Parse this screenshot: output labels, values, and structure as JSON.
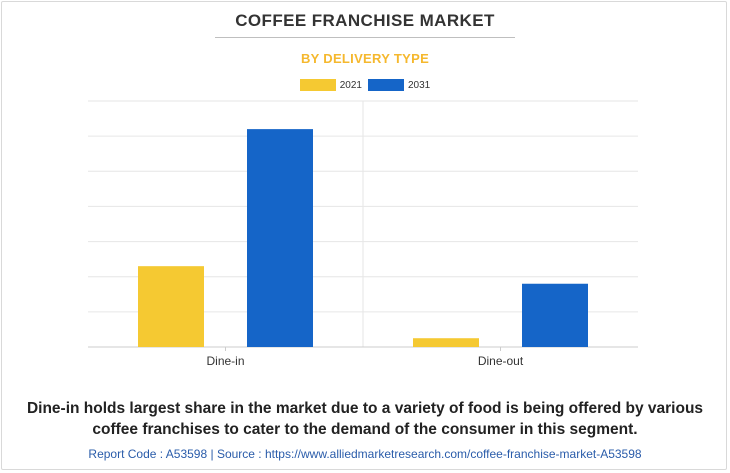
{
  "header": {
    "title": "COFFEE FRANCHISE MARKET",
    "subtitle": "BY DELIVERY TYPE"
  },
  "chart_data": {
    "type": "bar",
    "categories": [
      "Dine-in",
      "Dine-out"
    ],
    "series": [
      {
        "name": "2021",
        "color": "#f5c932",
        "values": [
          2.3,
          0.25
        ]
      },
      {
        "name": "2031",
        "color": "#1565c8",
        "values": [
          6.2,
          1.8
        ]
      }
    ],
    "ylim": [
      0,
      7
    ],
    "grid": true,
    "legend": "top-center",
    "xlabel": "",
    "ylabel": ""
  },
  "caption": {
    "line1": "Dine-in holds largest share in the market due to a variety of food is being offered by various",
    "line2": "coffee franchises to cater to the demand of the consumer in this segment."
  },
  "footer": {
    "text": "Report Code : A53598  |  Source : https://www.alliedmarketresearch.com/coffee-franchise-market-A53598"
  }
}
